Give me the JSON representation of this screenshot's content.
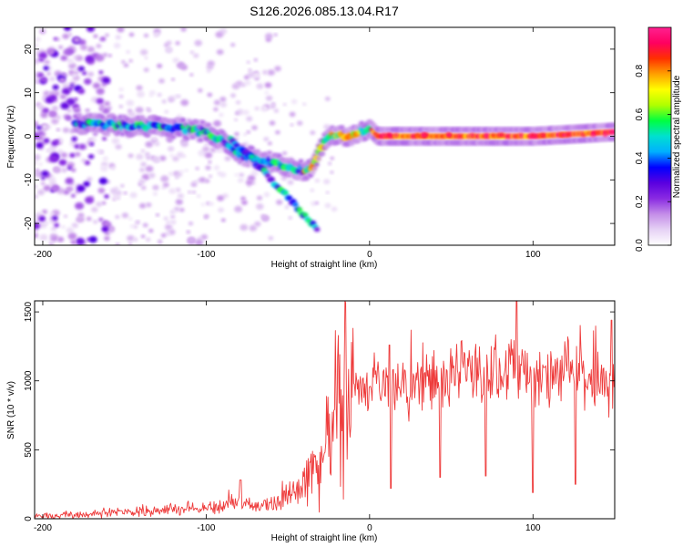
{
  "title": "S126.2026.085.13.04.R17",
  "chart_data": [
    {
      "type": "heatmap",
      "xlabel": "Height of straight line (km)",
      "ylabel": "Frequency (Hz)",
      "xlim": [
        -205,
        150
      ],
      "ylim": [
        -25,
        25
      ],
      "xticks": [
        -200,
        -100,
        0,
        100
      ],
      "yticks": [
        -20,
        -10,
        0,
        10,
        20
      ],
      "colorbar": {
        "label": "Normalized spectral amplitude",
        "range": [
          0.0,
          1.0
        ],
        "ticks": [
          0.0,
          0.2,
          0.4,
          0.6,
          0.8
        ],
        "colors": [
          "#ffffff",
          "#e6d2f5",
          "#c48de8",
          "#8a2be2",
          "#5a00e0",
          "#0000ff",
          "#00b0ff",
          "#00e0d0",
          "#00ff40",
          "#b0ff00",
          "#ffff00",
          "#ffa000",
          "#ff3000",
          "#ff0060",
          "#ff2090"
        ]
      },
      "ridges": [
        {
          "name": "main",
          "x": [
            -180,
            -150,
            -120,
            -100,
            -90,
            -80,
            -70,
            -60,
            -50,
            -40,
            -35,
            -30,
            -25,
            -20,
            -15,
            -10,
            -5,
            0,
            5,
            10,
            50,
            100,
            150
          ],
          "y": [
            3,
            2.5,
            2,
            1,
            -1,
            -4,
            -5,
            -6,
            -7,
            -8,
            -7,
            -3,
            0,
            0,
            0,
            0.5,
            1,
            2,
            0,
            0,
            0,
            0,
            1
          ]
        },
        {
          "name": "descending-arc",
          "x": [
            -85,
            -75,
            -65,
            -55,
            -45,
            -38,
            -32
          ],
          "y": [
            -1,
            -4,
            -8,
            -12,
            -16,
            -19,
            -21
          ]
        }
      ]
    },
    {
      "type": "line",
      "xlabel": "Height of straight line (km)",
      "ylabel": "SNR (10 * v/v)",
      "xlim": [
        -205,
        150
      ],
      "ylim": [
        0,
        1580
      ],
      "xticks": [
        -200,
        -100,
        0,
        100
      ],
      "yticks": [
        0,
        500,
        1000,
        1500
      ],
      "color": "#ee3b3b",
      "series": [
        {
          "name": "SNR",
          "x": [
            -205,
            -180,
            -150,
            -120,
            -100,
            -90,
            -80,
            -70,
            -60,
            -50,
            -40,
            -30,
            -25,
            -20,
            -15,
            -10,
            0,
            10,
            20,
            30,
            40,
            50,
            60,
            70,
            80,
            90,
            100,
            110,
            120,
            130,
            140,
            150
          ],
          "y": [
            20,
            30,
            50,
            70,
            80,
            90,
            120,
            80,
            110,
            170,
            270,
            400,
            600,
            780,
            900,
            950,
            950,
            980,
            950,
            980,
            1000,
            1000,
            1080,
            1080,
            1100,
            1100,
            1000,
            1000,
            1050,
            1050,
            1000,
            1000
          ]
        }
      ],
      "dips": [
        {
          "x": 13,
          "y": 220
        },
        {
          "x": 43,
          "y": 300
        },
        {
          "x": 71,
          "y": 310
        },
        {
          "x": 100,
          "y": 190
        },
        {
          "x": 126,
          "y": 250
        }
      ],
      "spikes": [
        {
          "x": -79,
          "y": 280
        },
        {
          "x": 12,
          "y": 1260
        },
        {
          "x": 90,
          "y": 1580
        },
        {
          "x": 148,
          "y": 1440
        }
      ]
    }
  ]
}
